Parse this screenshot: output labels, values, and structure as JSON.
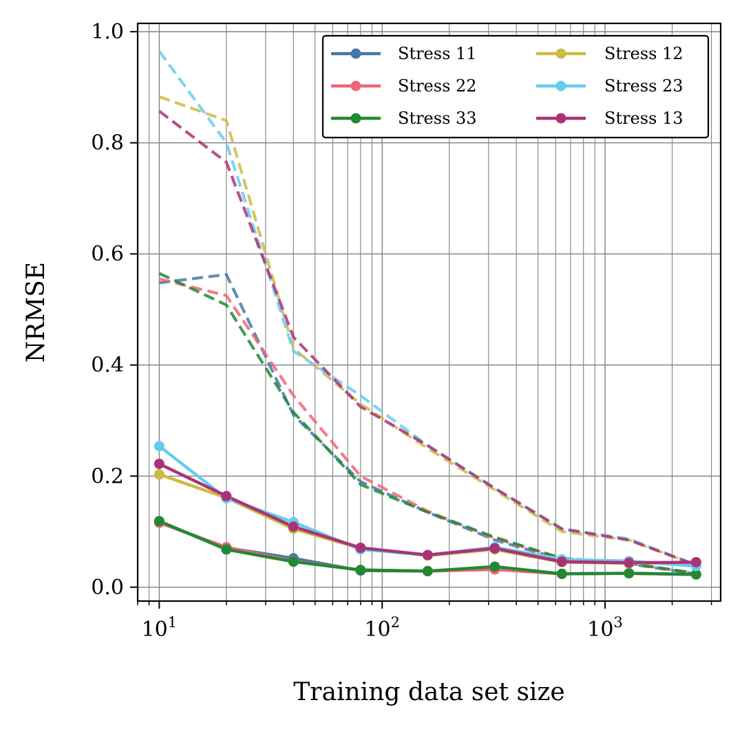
{
  "chart_data": {
    "type": "line",
    "title": "",
    "xlabel": "Training data set size",
    "ylabel": "NRMSE",
    "xscale": "log",
    "xlim": [
      8,
      3300
    ],
    "ylim": [
      -0.025,
      1.015
    ],
    "x_ticks": [
      {
        "value": 10,
        "base": "10",
        "exp": "1"
      },
      {
        "value": 100,
        "base": "10",
        "exp": "2"
      },
      {
        "value": 1000,
        "base": "10",
        "exp": "3"
      }
    ],
    "y_ticks": [
      {
        "value": 0.0,
        "label": "0.0"
      },
      {
        "value": 0.2,
        "label": "0.2"
      },
      {
        "value": 0.4,
        "label": "0.4"
      },
      {
        "value": 0.6,
        "label": "0.6"
      },
      {
        "value": 0.8,
        "label": "0.8"
      },
      {
        "value": 1.0,
        "label": "1.0"
      }
    ],
    "grid": true,
    "legend_position": "top-right",
    "x": [
      10,
      20,
      40,
      80,
      160,
      320,
      640,
      1280,
      2560
    ],
    "series": [
      {
        "name": "Stress 11",
        "color": "#4477aa",
        "values": [
          0.117,
          0.071,
          0.052,
          0.03,
          0.029,
          0.033,
          0.024,
          0.025,
          0.023
        ],
        "dashed_values": [
          0.548,
          0.563,
          0.31,
          0.19,
          0.135,
          0.085,
          0.05,
          0.042,
          0.024
        ]
      },
      {
        "name": "Stress 22",
        "color": "#ee6677",
        "values": [
          0.116,
          0.072,
          0.047,
          0.031,
          0.029,
          0.032,
          0.024,
          0.025,
          0.023
        ],
        "dashed_values": [
          0.555,
          0.525,
          0.345,
          0.2,
          0.137,
          0.088,
          0.052,
          0.043,
          0.025
        ]
      },
      {
        "name": "Stress 33",
        "color": "#228833",
        "values": [
          0.119,
          0.068,
          0.046,
          0.031,
          0.029,
          0.037,
          0.024,
          0.025,
          0.023
        ],
        "dashed_values": [
          0.565,
          0.508,
          0.315,
          0.185,
          0.135,
          0.09,
          0.052,
          0.043,
          0.025
        ]
      },
      {
        "name": "Stress 12",
        "color": "#ccbb44",
        "values": [
          0.203,
          0.161,
          0.105,
          0.07,
          0.057,
          0.068,
          0.045,
          0.043,
          0.045
        ],
        "dashed_values": [
          0.883,
          0.84,
          0.43,
          0.33,
          0.25,
          0.175,
          0.1,
          0.085,
          0.04
        ]
      },
      {
        "name": "Stress 23",
        "color": "#66ccee",
        "values": [
          0.254,
          0.16,
          0.117,
          0.068,
          0.058,
          0.072,
          0.05,
          0.047,
          0.038
        ],
        "dashed_values": [
          0.965,
          0.8,
          0.425,
          0.345,
          0.255,
          0.178,
          0.105,
          0.087,
          0.04
        ]
      },
      {
        "name": "Stress 13",
        "color": "#aa3377",
        "values": [
          0.222,
          0.164,
          0.109,
          0.071,
          0.058,
          0.07,
          0.046,
          0.044,
          0.045
        ],
        "dashed_values": [
          0.857,
          0.765,
          0.45,
          0.325,
          0.255,
          0.178,
          0.105,
          0.085,
          0.04
        ]
      }
    ]
  }
}
